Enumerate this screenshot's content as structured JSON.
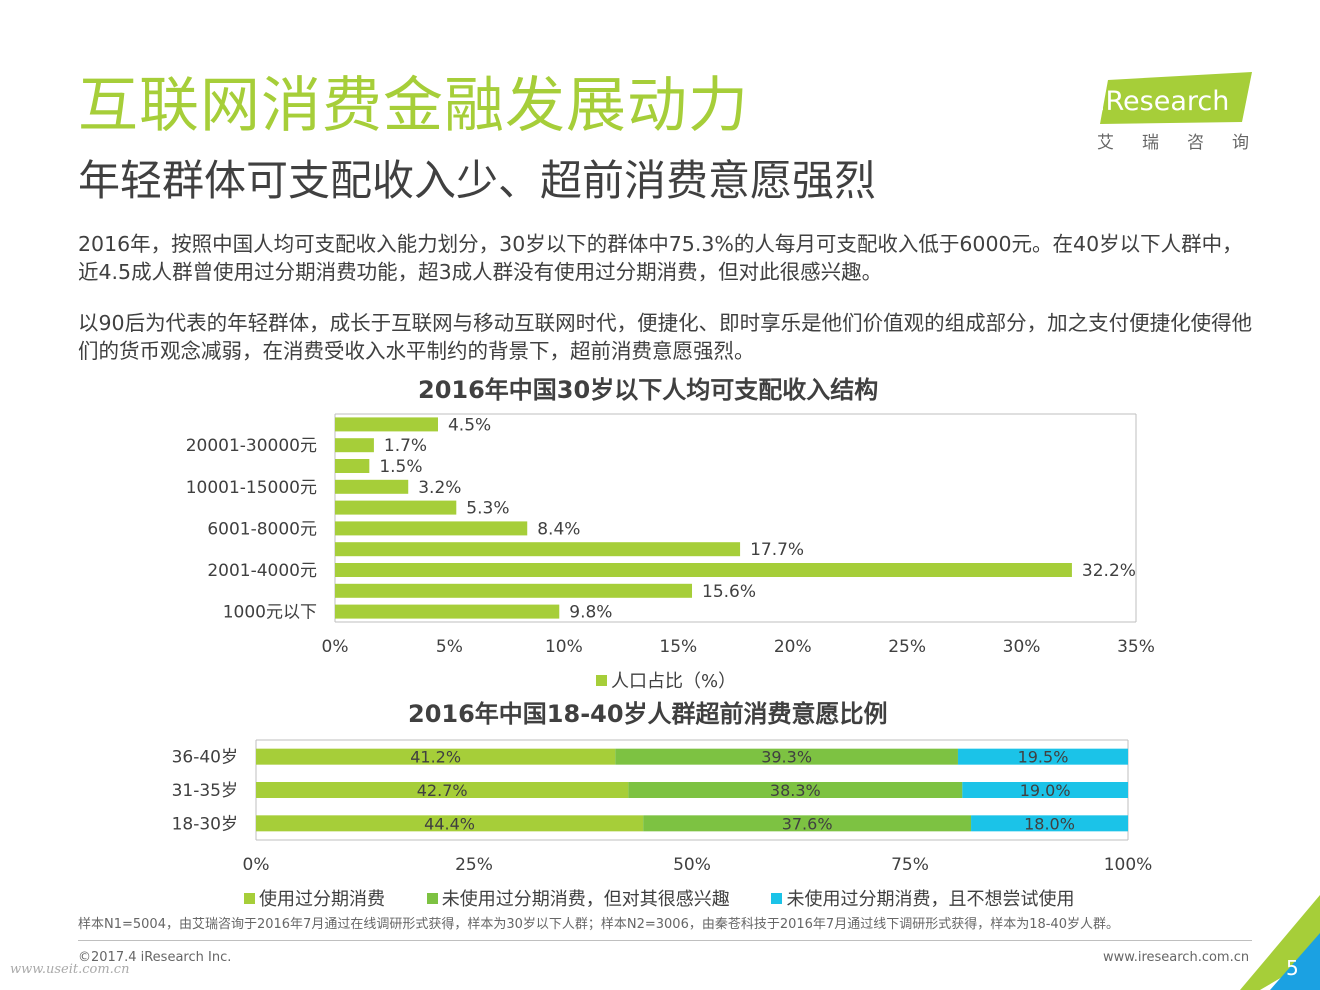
{
  "header": {
    "title": "互联网消费金融发展动力",
    "subtitle": "年轻群体可支配收入少、超前消费意愿强烈"
  },
  "logo": {
    "brand": "iResearch",
    "cn": "艾瑞咨询"
  },
  "paragraphs": [
    "2016年，按照中国人均可支配收入能力划分，30岁以下的群体中75.3%的人每月可支配收入低于6000元。在40岁以下人群中，近4.5成人群曾使用过分期消费功能，超3成人群没有使用过分期消费，但对此很感兴趣。",
    "以90后为代表的年轻群体，成长于互联网与移动互联网时代，便捷化、即时享乐是他们价值观的组成部分，加之支付便捷化使得他们的货币观念减弱，在消费受收入水平制约的背景下，超前消费意愿强烈。"
  ],
  "chart_data": [
    {
      "type": "bar",
      "orientation": "horizontal",
      "title": "2016年中国30岁以下人均可支配收入结构",
      "categories": [
        "1000元以下",
        "",
        "2001-4000元",
        "",
        "6001-8000元",
        "",
        "10001-15000元",
        "",
        "20001-30000元",
        ""
      ],
      "values": [
        9.8,
        15.6,
        32.2,
        17.7,
        8.4,
        5.3,
        3.2,
        1.5,
        1.7,
        4.5
      ],
      "value_labels": [
        "9.8%",
        "15.6%",
        "32.2%",
        "17.7%",
        "8.4%",
        "5.3%",
        "3.2%",
        "1.5%",
        "1.7%",
        "4.5%"
      ],
      "x_ticks": [
        "0%",
        "5%",
        "10%",
        "15%",
        "20%",
        "25%",
        "30%",
        "35%"
      ],
      "xlim": [
        0,
        35
      ],
      "legend": [
        "人口占比（%）"
      ],
      "legend_position": "bottom",
      "color": "#a6ce39"
    },
    {
      "type": "bar",
      "orientation": "horizontal",
      "stacked": "percent",
      "title": "2016年中国18-40岁人群超前消费意愿比例",
      "categories": [
        "18-30岁",
        "31-35岁",
        "36-40岁"
      ],
      "series": [
        {
          "name": "使用过分期消费",
          "values": [
            44.4,
            42.7,
            41.2
          ],
          "labels": [
            "44.4%",
            "42.7%",
            "41.2%"
          ],
          "color": "#a6ce39"
        },
        {
          "name": "未使用过分期消费，但对其很感兴趣",
          "values": [
            37.6,
            38.3,
            39.3
          ],
          "labels": [
            "37.6%",
            "38.3%",
            "39.3%"
          ],
          "color": "#7dc242"
        },
        {
          "name": "未使用过分期消费，且不想尝试使用",
          "values": [
            18.0,
            19.0,
            19.5
          ],
          "labels": [
            "18.0%",
            "19.0%",
            "19.5%"
          ],
          "color": "#1bc3e8"
        }
      ],
      "x_ticks": [
        "0%",
        "25%",
        "50%",
        "75%",
        "100%"
      ],
      "xlim": [
        0,
        100
      ],
      "legend_position": "bottom"
    }
  ],
  "footer": {
    "source": "样本N1=5004，由艾瑞咨询于2016年7月通过在线调研形式获得，样本为30岁以下人群；样本N2=3006，由秦苍科技于2016年7月通过线下调研形式获得，样本为18-40岁人群。",
    "copyright": "©2017.4 iResearch Inc.",
    "website": "www.iresearch.com.cn",
    "watermark": "www.useit.com.cn",
    "page_number": "5"
  },
  "colors": {
    "accent": "#a6ce39",
    "green2": "#7dc242",
    "cyan": "#1bc3e8",
    "corner_blue": "#1ba1e2"
  }
}
